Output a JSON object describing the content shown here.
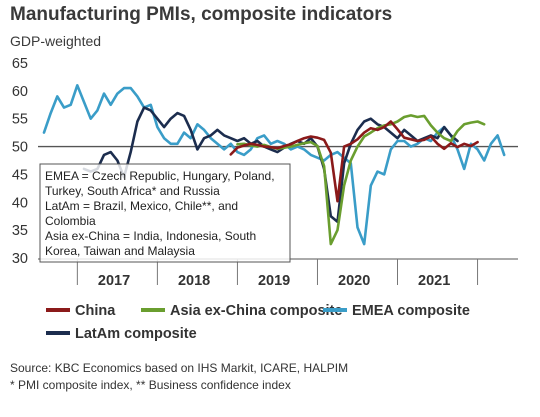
{
  "title": "Manufacturing PMIs, composite indicators",
  "subtitle": "GDP-weighted",
  "note": [
    "EMEA = Czech Republic, Hungary, Poland,",
    "Turkey, South Africa* and Russia",
    "LatAm = Brazil, Mexico, Chile**, and",
    "Colombia",
    "Asia ex-China = India, Indonesia, South",
    "Korea, Taiwan and Malaysia"
  ],
  "source": [
    "Source: KBC Economics based on IHS Markit, ICARE, HALPIM",
    "* PMI composite index, ** Business confidence index"
  ],
  "chart_data": {
    "type": "line",
    "ylim": [
      30,
      65
    ],
    "yticks": [
      30,
      35,
      40,
      45,
      50,
      55,
      60,
      65
    ],
    "reference_line": 50,
    "x_start": "2016-08",
    "x_categories": [
      "2017",
      "2018",
      "2019",
      "2020",
      "2021"
    ],
    "series": [
      {
        "name": "China",
        "color": "#8b1a1a",
        "start": "2018-12",
        "values": [
          48.6,
          49.8,
          50.2,
          50.5,
          50.3,
          50.0,
          49.9,
          49.7,
          50.1,
          50.4,
          51.0,
          51.5,
          51.8,
          51.6,
          51.2,
          48.9,
          40.2,
          50.0,
          50.5,
          51.3,
          52.5,
          53.3,
          53.0,
          53.5,
          54.5,
          53.1,
          51.6,
          51.3,
          51.0,
          51.2,
          51.8,
          50.5,
          49.6,
          50.6,
          49.9,
          50.5,
          50.1,
          50.8
        ]
      },
      {
        "name": "Asia ex-China composite",
        "color": "#6a9e2f",
        "start": "2019-01",
        "values": [
          50.4,
          50.5,
          50.2,
          50.0,
          50.3,
          49.9,
          49.6,
          49.8,
          50.0,
          50.3,
          50.6,
          50.8,
          50.1,
          46.5,
          32.5,
          35.0,
          43.0,
          47.5,
          50.0,
          51.8,
          52.5,
          53.3,
          53.8,
          54.0,
          54.5,
          55.3,
          55.6,
          55.3,
          55.5,
          53.8,
          52.5,
          51.5,
          51.0,
          52.8,
          54.0,
          54.3,
          54.5,
          54.0
        ]
      },
      {
        "name": "EMEA composite",
        "color": "#3a9dc8",
        "start": "2016-08",
        "values": [
          52.5,
          56.0,
          59.0,
          57.0,
          57.5,
          61.0,
          58.0,
          55.0,
          56.5,
          59.5,
          57.5,
          59.5,
          60.5,
          60.5,
          59.0,
          57.0,
          57.5,
          53.5,
          51.5,
          50.5,
          50.5,
          52.5,
          51.5,
          54.0,
          53.0,
          51.5,
          50.5,
          49.5,
          50.5,
          49.0,
          48.5,
          49.5,
          51.5,
          52.0,
          50.5,
          51.0,
          50.5,
          49.5,
          50.0,
          49.5,
          48.5,
          48.0,
          47.5,
          48.5,
          49.0,
          48.0,
          47.0,
          35.5,
          32.5,
          43.0,
          45.5,
          45.0,
          49.5,
          51.0,
          51.0,
          50.0,
          50.5,
          51.5,
          51.0,
          52.5,
          53.5,
          52.0,
          49.5,
          46.0,
          50.5,
          49.5,
          47.5,
          50.5,
          52.0,
          48.5
        ]
      },
      {
        "name": "LatAm composite",
        "color": "#1c2d4e",
        "start": "2017-02",
        "values": [
          46.0,
          45.5,
          46.0,
          48.5,
          49.0,
          47.5,
          44.5,
          49.0,
          54.5,
          57.0,
          56.5,
          55.0,
          53.5,
          55.0,
          56.0,
          55.5,
          53.0,
          49.5,
          51.5,
          52.0,
          53.0,
          52.0,
          51.5,
          51.0,
          51.5,
          50.5,
          51.0,
          50.0,
          49.5,
          49.0,
          49.8,
          50.5,
          51.0,
          50.5,
          51.5,
          50.0,
          46.0,
          37.5,
          36.5,
          47.0,
          50.5,
          53.0,
          54.5,
          55.0,
          54.0,
          53.5,
          52.5,
          51.5,
          53.0,
          52.0,
          51.0,
          51.5,
          52.0,
          51.5,
          53.5,
          52.0,
          51.0
        ]
      }
    ]
  }
}
